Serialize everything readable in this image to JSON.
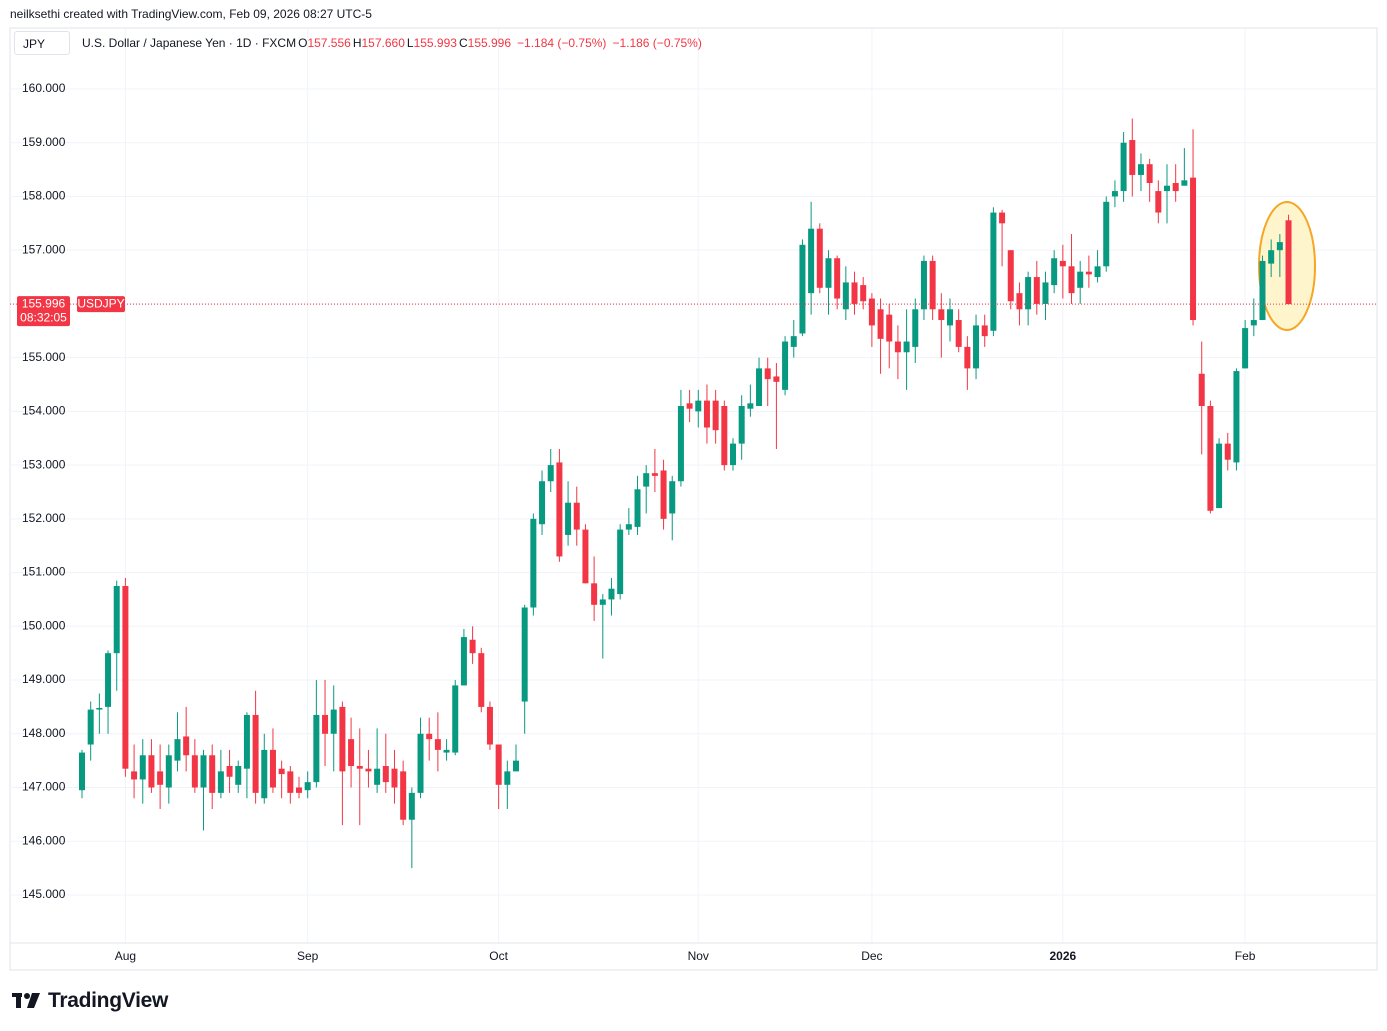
{
  "credit": "neilksethi created with TradingView.com, Feb 09, 2026 08:27 UTC-5",
  "header": {
    "symbol_box": "JPY",
    "description": "U.S. Dollar / Japanese Yen · 1D · FXCM",
    "ohlc": [
      {
        "label": "O",
        "value": "157.556"
      },
      {
        "label": "H",
        "value": "157.660"
      },
      {
        "label": "L",
        "value": "155.993"
      },
      {
        "label": "C",
        "value": "155.996"
      }
    ],
    "change": "−1.184 (−0.75%)",
    "change_alt": "−1.186 (−0.75%)"
  },
  "footer_brand": "TradingView",
  "chart_data": {
    "type": "candlestick",
    "up_color": "#089981",
    "down_color": "#f23645",
    "grid": true,
    "price_badge": {
      "symbol": "USDJPY",
      "countdown": "08:32:05"
    },
    "ylim": [
      144.106,
      161.135
    ],
    "yticks": [
      {
        "value": 145,
        "label": "145.000"
      },
      {
        "value": 146,
        "label": "146.000"
      },
      {
        "value": 147,
        "label": "147.000"
      },
      {
        "value": 148,
        "label": "148.000"
      },
      {
        "value": 149,
        "label": "149.000"
      },
      {
        "value": 150,
        "label": "150.000"
      },
      {
        "value": 151,
        "label": "151.000"
      },
      {
        "value": 152,
        "label": "152.000"
      },
      {
        "value": 153,
        "label": "153.000"
      },
      {
        "value": 154,
        "label": "154.000"
      },
      {
        "value": 155,
        "label": "155.000"
      },
      {
        "value": 156,
        "label": "156.000"
      },
      {
        "value": 157,
        "label": "157.000"
      },
      {
        "value": 158,
        "label": "158.000"
      },
      {
        "value": 159,
        "label": "159.000"
      },
      {
        "value": 160,
        "label": "160.000"
      }
    ],
    "categories": [
      null,
      null,
      null,
      null,
      null,
      "Aug",
      null,
      null,
      null,
      null,
      null,
      null,
      null,
      null,
      null,
      null,
      null,
      null,
      null,
      null,
      null,
      null,
      null,
      null,
      null,
      null,
      "Sep",
      null,
      null,
      null,
      null,
      null,
      null,
      null,
      null,
      null,
      null,
      null,
      null,
      null,
      null,
      null,
      null,
      null,
      null,
      null,
      null,
      null,
      "Oct",
      null,
      null,
      null,
      null,
      null,
      null,
      null,
      null,
      null,
      null,
      null,
      null,
      null,
      null,
      null,
      null,
      null,
      null,
      null,
      null,
      null,
      null,
      "Nov",
      null,
      null,
      null,
      null,
      null,
      null,
      null,
      null,
      null,
      null,
      null,
      null,
      null,
      null,
      null,
      null,
      null,
      null,
      null,
      "Dec",
      null,
      null,
      null,
      null,
      null,
      null,
      null,
      null,
      null,
      null,
      null,
      null,
      null,
      null,
      null,
      null,
      null,
      null,
      null,
      null,
      null,
      "2026",
      null,
      null,
      null,
      null,
      null,
      null,
      null,
      null,
      null,
      null,
      null,
      null,
      null,
      null,
      null,
      null,
      null,
      null,
      null,
      null,
      "Feb",
      null,
      null,
      null,
      null,
      null
    ],
    "open": [
      146.95,
      147.8,
      148.45,
      148.5,
      149.5,
      150.75,
      147.3,
      147.15,
      147.6,
      147.3,
      147.0,
      147.5,
      147.95,
      147.6,
      147.0,
      147.6,
      146.9,
      147.4,
      147.05,
      147.35,
      148.35,
      146.8,
      147.7,
      147.35,
      147.3,
      147.0,
      146.95,
      147.1,
      148.35,
      148.0,
      148.5,
      147.9,
      147.4,
      147.35,
      147.05,
      147.4,
      147.35,
      147.3,
      146.4,
      146.9,
      148.0,
      147.9,
      147.65,
      147.65,
      148.9,
      149.75,
      149.5,
      148.5,
      147.8,
      147.05,
      147.3,
      148.6,
      150.35,
      151.9,
      152.7,
      153.05,
      151.7,
      152.3,
      151.8,
      150.8,
      150.4,
      150.5,
      150.6,
      151.8,
      151.85,
      152.6,
      152.85,
      152.9,
      152.1,
      152.7,
      154.15,
      154.0,
      154.2,
      154.2,
      154.1,
      153.0,
      153.4,
      154.05,
      154.1,
      154.8,
      154.65,
      154.4,
      155.2,
      155.45,
      156.2,
      157.4,
      156.3,
      156.85,
      155.9,
      156.4,
      156.35,
      156.1,
      155.9,
      155.8,
      155.3,
      155.1,
      155.2,
      155.9,
      156.8,
      155.9,
      155.6,
      155.7,
      155.2,
      154.8,
      155.6,
      155.5,
      157.7,
      157.0,
      156.2,
      155.9,
      156.5,
      156.0,
      156.35,
      156.8,
      156.7,
      156.3,
      156.6,
      156.5,
      156.7,
      158.0,
      158.1,
      159.05,
      158.4,
      158.6,
      158.1,
      158.1,
      158.25,
      158.2,
      158.35,
      154.7,
      154.1,
      152.2,
      153.4,
      153.05,
      154.8,
      155.6,
      155.7,
      156.75,
      157.0,
      157.556
    ],
    "high": [
      147.7,
      148.6,
      148.75,
      149.55,
      150.85,
      150.9,
      147.8,
      147.9,
      147.9,
      147.8,
      147.8,
      148.4,
      148.5,
      147.9,
      147.7,
      147.8,
      147.7,
      147.7,
      147.5,
      148.4,
      148.8,
      148.0,
      148.1,
      147.5,
      147.4,
      147.2,
      147.3,
      149.0,
      149.0,
      148.9,
      148.6,
      148.3,
      148.1,
      147.7,
      148.1,
      148.0,
      147.7,
      147.5,
      147.0,
      148.3,
      148.3,
      148.4,
      147.9,
      149.0,
      149.95,
      150.0,
      149.6,
      148.6,
      147.8,
      147.5,
      147.8,
      150.4,
      152.1,
      152.9,
      153.3,
      153.3,
      152.7,
      152.6,
      151.9,
      151.3,
      150.6,
      150.9,
      151.9,
      152.2,
      152.8,
      153.0,
      153.3,
      153.1,
      152.8,
      154.4,
      154.4,
      154.4,
      154.5,
      154.4,
      154.2,
      153.5,
      154.3,
      154.5,
      155.0,
      155.0,
      154.9,
      155.4,
      155.7,
      157.2,
      157.9,
      157.5,
      157.0,
      156.9,
      156.7,
      156.6,
      156.5,
      156.2,
      156.1,
      156.0,
      155.6,
      155.9,
      156.1,
      156.9,
      156.9,
      156.2,
      156.1,
      155.9,
      155.4,
      155.8,
      155.8,
      157.8,
      157.75,
      157.0,
      156.4,
      156.6,
      156.8,
      156.6,
      157.0,
      157.1,
      157.3,
      156.8,
      156.9,
      157.0,
      158.0,
      158.3,
      159.2,
      159.45,
      158.8,
      158.7,
      158.3,
      158.6,
      158.6,
      158.9,
      159.25,
      155.3,
      154.2,
      153.5,
      153.6,
      154.8,
      155.7,
      156.1,
      156.9,
      157.2,
      157.3,
      157.66
    ],
    "low": [
      146.8,
      147.5,
      148.0,
      148.0,
      148.8,
      147.2,
      146.8,
      146.7,
      146.9,
      146.6,
      146.7,
      147.3,
      147.3,
      146.9,
      146.2,
      146.6,
      146.8,
      146.9,
      146.9,
      146.8,
      146.7,
      146.7,
      146.9,
      146.8,
      146.7,
      146.8,
      146.8,
      147.0,
      147.4,
      147.3,
      146.3,
      147.0,
      146.3,
      147.0,
      146.9,
      146.9,
      146.7,
      146.3,
      145.5,
      146.8,
      147.5,
      147.3,
      147.5,
      147.6,
      148.9,
      149.3,
      148.4,
      147.7,
      146.6,
      146.6,
      147.3,
      148.0,
      150.2,
      151.7,
      152.5,
      151.2,
      151.5,
      151.5,
      150.8,
      150.1,
      149.4,
      150.2,
      150.5,
      151.7,
      151.7,
      152.1,
      152.5,
      151.8,
      151.6,
      152.6,
      153.8,
      153.7,
      153.4,
      153.4,
      152.9,
      152.9,
      153.1,
      153.9,
      154.1,
      154.1,
      153.3,
      154.3,
      155.0,
      155.4,
      155.8,
      156.2,
      155.8,
      155.9,
      155.7,
      155.8,
      155.9,
      155.2,
      154.7,
      154.8,
      154.6,
      154.4,
      154.9,
      155.7,
      155.7,
      155.0,
      155.3,
      155.1,
      154.4,
      154.6,
      155.2,
      155.4,
      156.7,
      155.9,
      155.6,
      155.6,
      155.8,
      155.7,
      156.2,
      156.1,
      156.0,
      156.0,
      156.3,
      156.4,
      156.6,
      157.8,
      157.9,
      158.0,
      158.1,
      157.9,
      157.5,
      157.5,
      157.9,
      158.2,
      155.6,
      153.2,
      152.1,
      152.2,
      152.9,
      152.9,
      154.8,
      155.4,
      155.7,
      156.5,
      156.5,
      155.993
    ],
    "close": [
      147.65,
      148.45,
      148.48,
      149.5,
      150.75,
      147.35,
      147.15,
      147.6,
      147.0,
      147.05,
      147.6,
      147.9,
      147.6,
      147.0,
      147.6,
      146.9,
      147.3,
      147.2,
      147.4,
      148.35,
      146.9,
      147.7,
      147.0,
      147.25,
      146.9,
      146.9,
      147.1,
      148.35,
      148.0,
      148.45,
      147.3,
      147.4,
      147.35,
      147.3,
      147.35,
      147.1,
      147.0,
      146.4,
      146.9,
      148.0,
      147.9,
      147.7,
      147.7,
      148.9,
      149.8,
      149.5,
      148.5,
      147.8,
      147.05,
      147.3,
      147.5,
      150.35,
      152.0,
      152.7,
      153.0,
      151.3,
      152.3,
      151.8,
      150.8,
      150.4,
      150.5,
      150.7,
      151.8,
      151.9,
      152.55,
      152.85,
      152.8,
      152.0,
      152.7,
      154.1,
      154.05,
      154.2,
      153.7,
      153.65,
      153.0,
      153.4,
      154.1,
      154.15,
      154.8,
      154.6,
      154.55,
      155.3,
      155.4,
      157.1,
      157.4,
      156.3,
      156.85,
      156.1,
      156.4,
      156.0,
      156.05,
      155.6,
      155.35,
      155.3,
      155.1,
      155.3,
      155.9,
      156.8,
      155.9,
      155.7,
      155.9,
      155.2,
      154.8,
      155.6,
      155.4,
      157.7,
      157.5,
      156.05,
      155.9,
      156.5,
      156.0,
      156.4,
      156.85,
      156.7,
      156.2,
      156.6,
      156.55,
      156.7,
      157.9,
      158.1,
      159.0,
      158.4,
      158.6,
      158.25,
      157.7,
      158.2,
      158.1,
      158.3,
      155.7,
      154.1,
      152.15,
      153.4,
      153.1,
      154.75,
      155.55,
      155.7,
      156.8,
      157.0,
      157.15,
      155.996
    ]
  }
}
